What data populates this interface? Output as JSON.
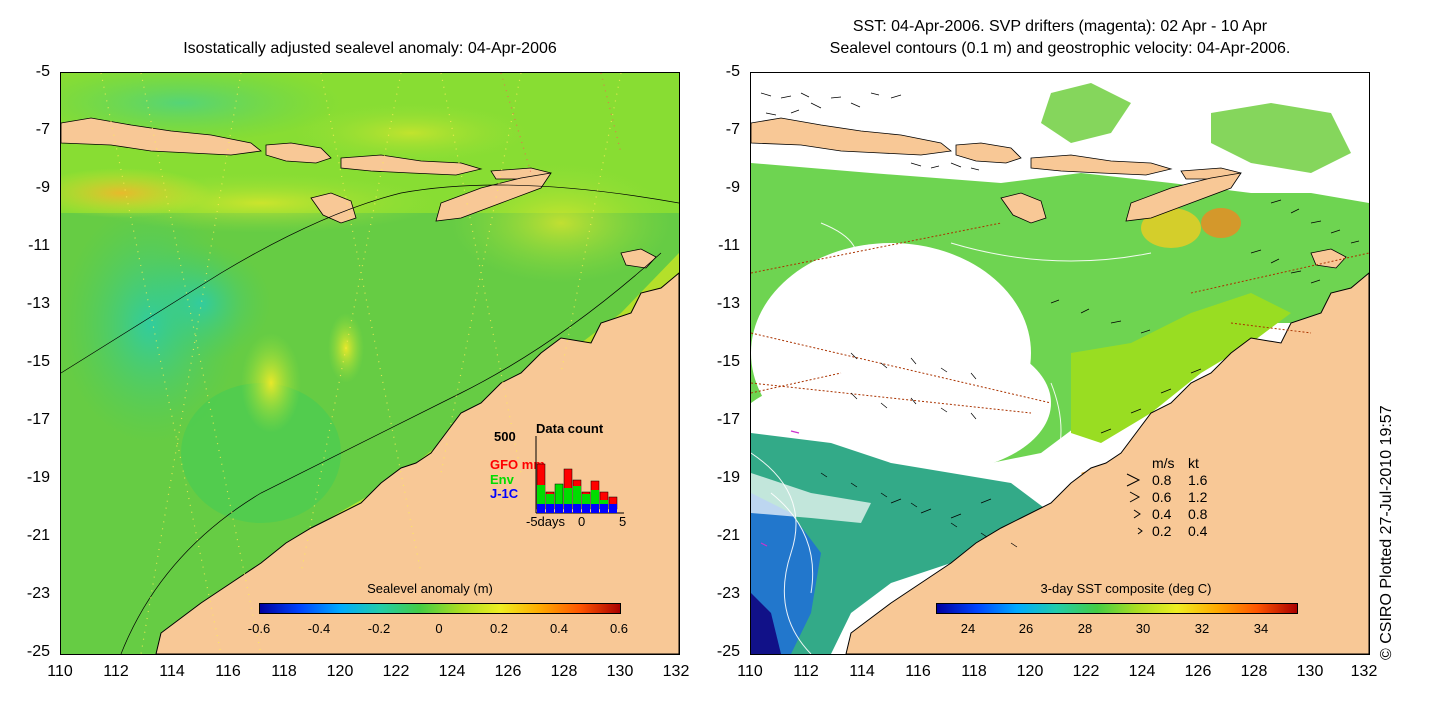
{
  "left_panel": {
    "title": "Isostatically adjusted sealevel anomaly: 04-Apr-2006",
    "colorbar_title": "Sealevel anomaly (m)",
    "colorbar_labels": [
      "-0.6",
      "-0.4",
      "-0.2",
      "0",
      "0.2",
      "0.4",
      "0.6"
    ],
    "data_count": {
      "title": "Data count",
      "ymax_label": "500",
      "series": [
        {
          "name": "GFO mm",
          "color": "#ff0000"
        },
        {
          "name": "Env",
          "color": "#00dd00"
        },
        {
          "name": "J-1C",
          "color": "#0000ff"
        }
      ],
      "x_label_left": "-5days",
      "x_label_mid": "0",
      "x_label_right": "5"
    }
  },
  "right_panel": {
    "title_line1": "SST: 04-Apr-2006. SVP drifters (magenta): 02 Apr - 10 Apr",
    "title_line2": "Sealevel contours (0.1 m) and geostrophic velocity: 04-Apr-2006.",
    "colorbar_title": "3-day SST composite (deg C)",
    "colorbar_labels": [
      "24",
      "26",
      "28",
      "30",
      "32",
      "34"
    ],
    "legend": {
      "header_ms": "m/s",
      "header_kt": "kt",
      "rows": [
        {
          "ms": "0.8",
          "kt": "1.6"
        },
        {
          "ms": "0.6",
          "kt": "1.2"
        },
        {
          "ms": "0.4",
          "kt": "0.8"
        },
        {
          "ms": "0.2",
          "kt": "0.4"
        }
      ]
    }
  },
  "axes": {
    "y_ticks": [
      "-5",
      "-7",
      "-9",
      "-11",
      "-13",
      "-15",
      "-17",
      "-19",
      "-21",
      "-23",
      "-25"
    ],
    "x_ticks": [
      "110",
      "112",
      "114",
      "116",
      "118",
      "120",
      "122",
      "124",
      "126",
      "128",
      "130",
      "132"
    ]
  },
  "copyright": "© CSIRO Plotted 27-Jul-2010 19:57",
  "colors": {
    "land": "#f8c896",
    "ocean_sla": "#66dd44",
    "ocean_sst": "#55cc33",
    "cloud": "#ffffff"
  }
}
